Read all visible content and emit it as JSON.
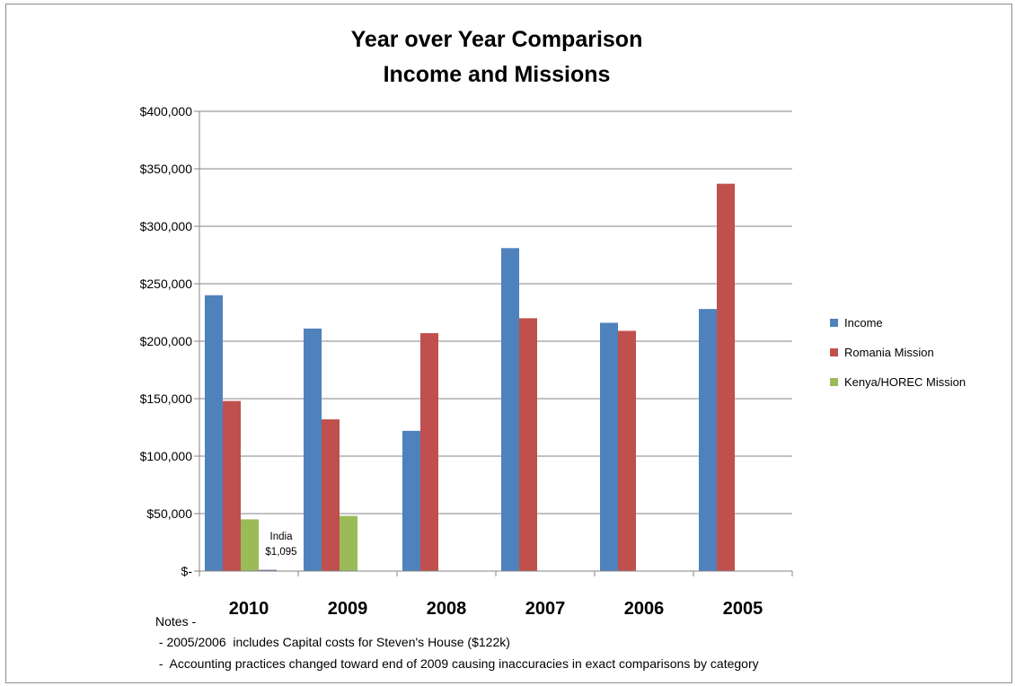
{
  "chart_data": {
    "type": "bar",
    "title": [
      "Year over Year Comparison",
      "Income and Missions"
    ],
    "categories": [
      "2010",
      "2009",
      "2008",
      "2007",
      "2006",
      "2005"
    ],
    "series": [
      {
        "name": "Income",
        "color": "#4f81bd",
        "values": [
          240000,
          211000,
          122000,
          281000,
          216000,
          228000
        ]
      },
      {
        "name": "Romania Mission",
        "color": "#c0504d",
        "values": [
          148000,
          132000,
          207000,
          220000,
          209000,
          337000
        ]
      },
      {
        "name": "Kenya/HOREC Mission",
        "color": "#9bbb59",
        "values": [
          45000,
          48000,
          0,
          0,
          0,
          0
        ]
      },
      {
        "name": "",
        "color": "#8064a2",
        "values": [
          1095,
          0,
          0,
          0,
          0,
          0
        ]
      }
    ],
    "ylim": [
      0,
      400000
    ],
    "yticks": [
      {
        "value": 400000,
        "label": "$400,000"
      },
      {
        "value": 350000,
        "label": "$350,000"
      },
      {
        "value": 300000,
        "label": "$300,000"
      },
      {
        "value": 250000,
        "label": "$250,000"
      },
      {
        "value": 200000,
        "label": "$200,000"
      },
      {
        "value": 150000,
        "label": "$150,000"
      },
      {
        "value": 100000,
        "label": "$100,000"
      },
      {
        "value": 50000,
        "label": "$50,000"
      },
      {
        "value": 0,
        "label": "$-"
      }
    ],
    "grid": true,
    "legend_position": "right",
    "annotation": [
      "India",
      "$1,095"
    ],
    "notes": [
      "Notes -",
      " - 2005/2006  includes Capital costs for Steven's House ($122k)",
      " -  Accounting practices changed toward end of 2009 causing inaccuracies in exact comparisons by category"
    ]
  }
}
